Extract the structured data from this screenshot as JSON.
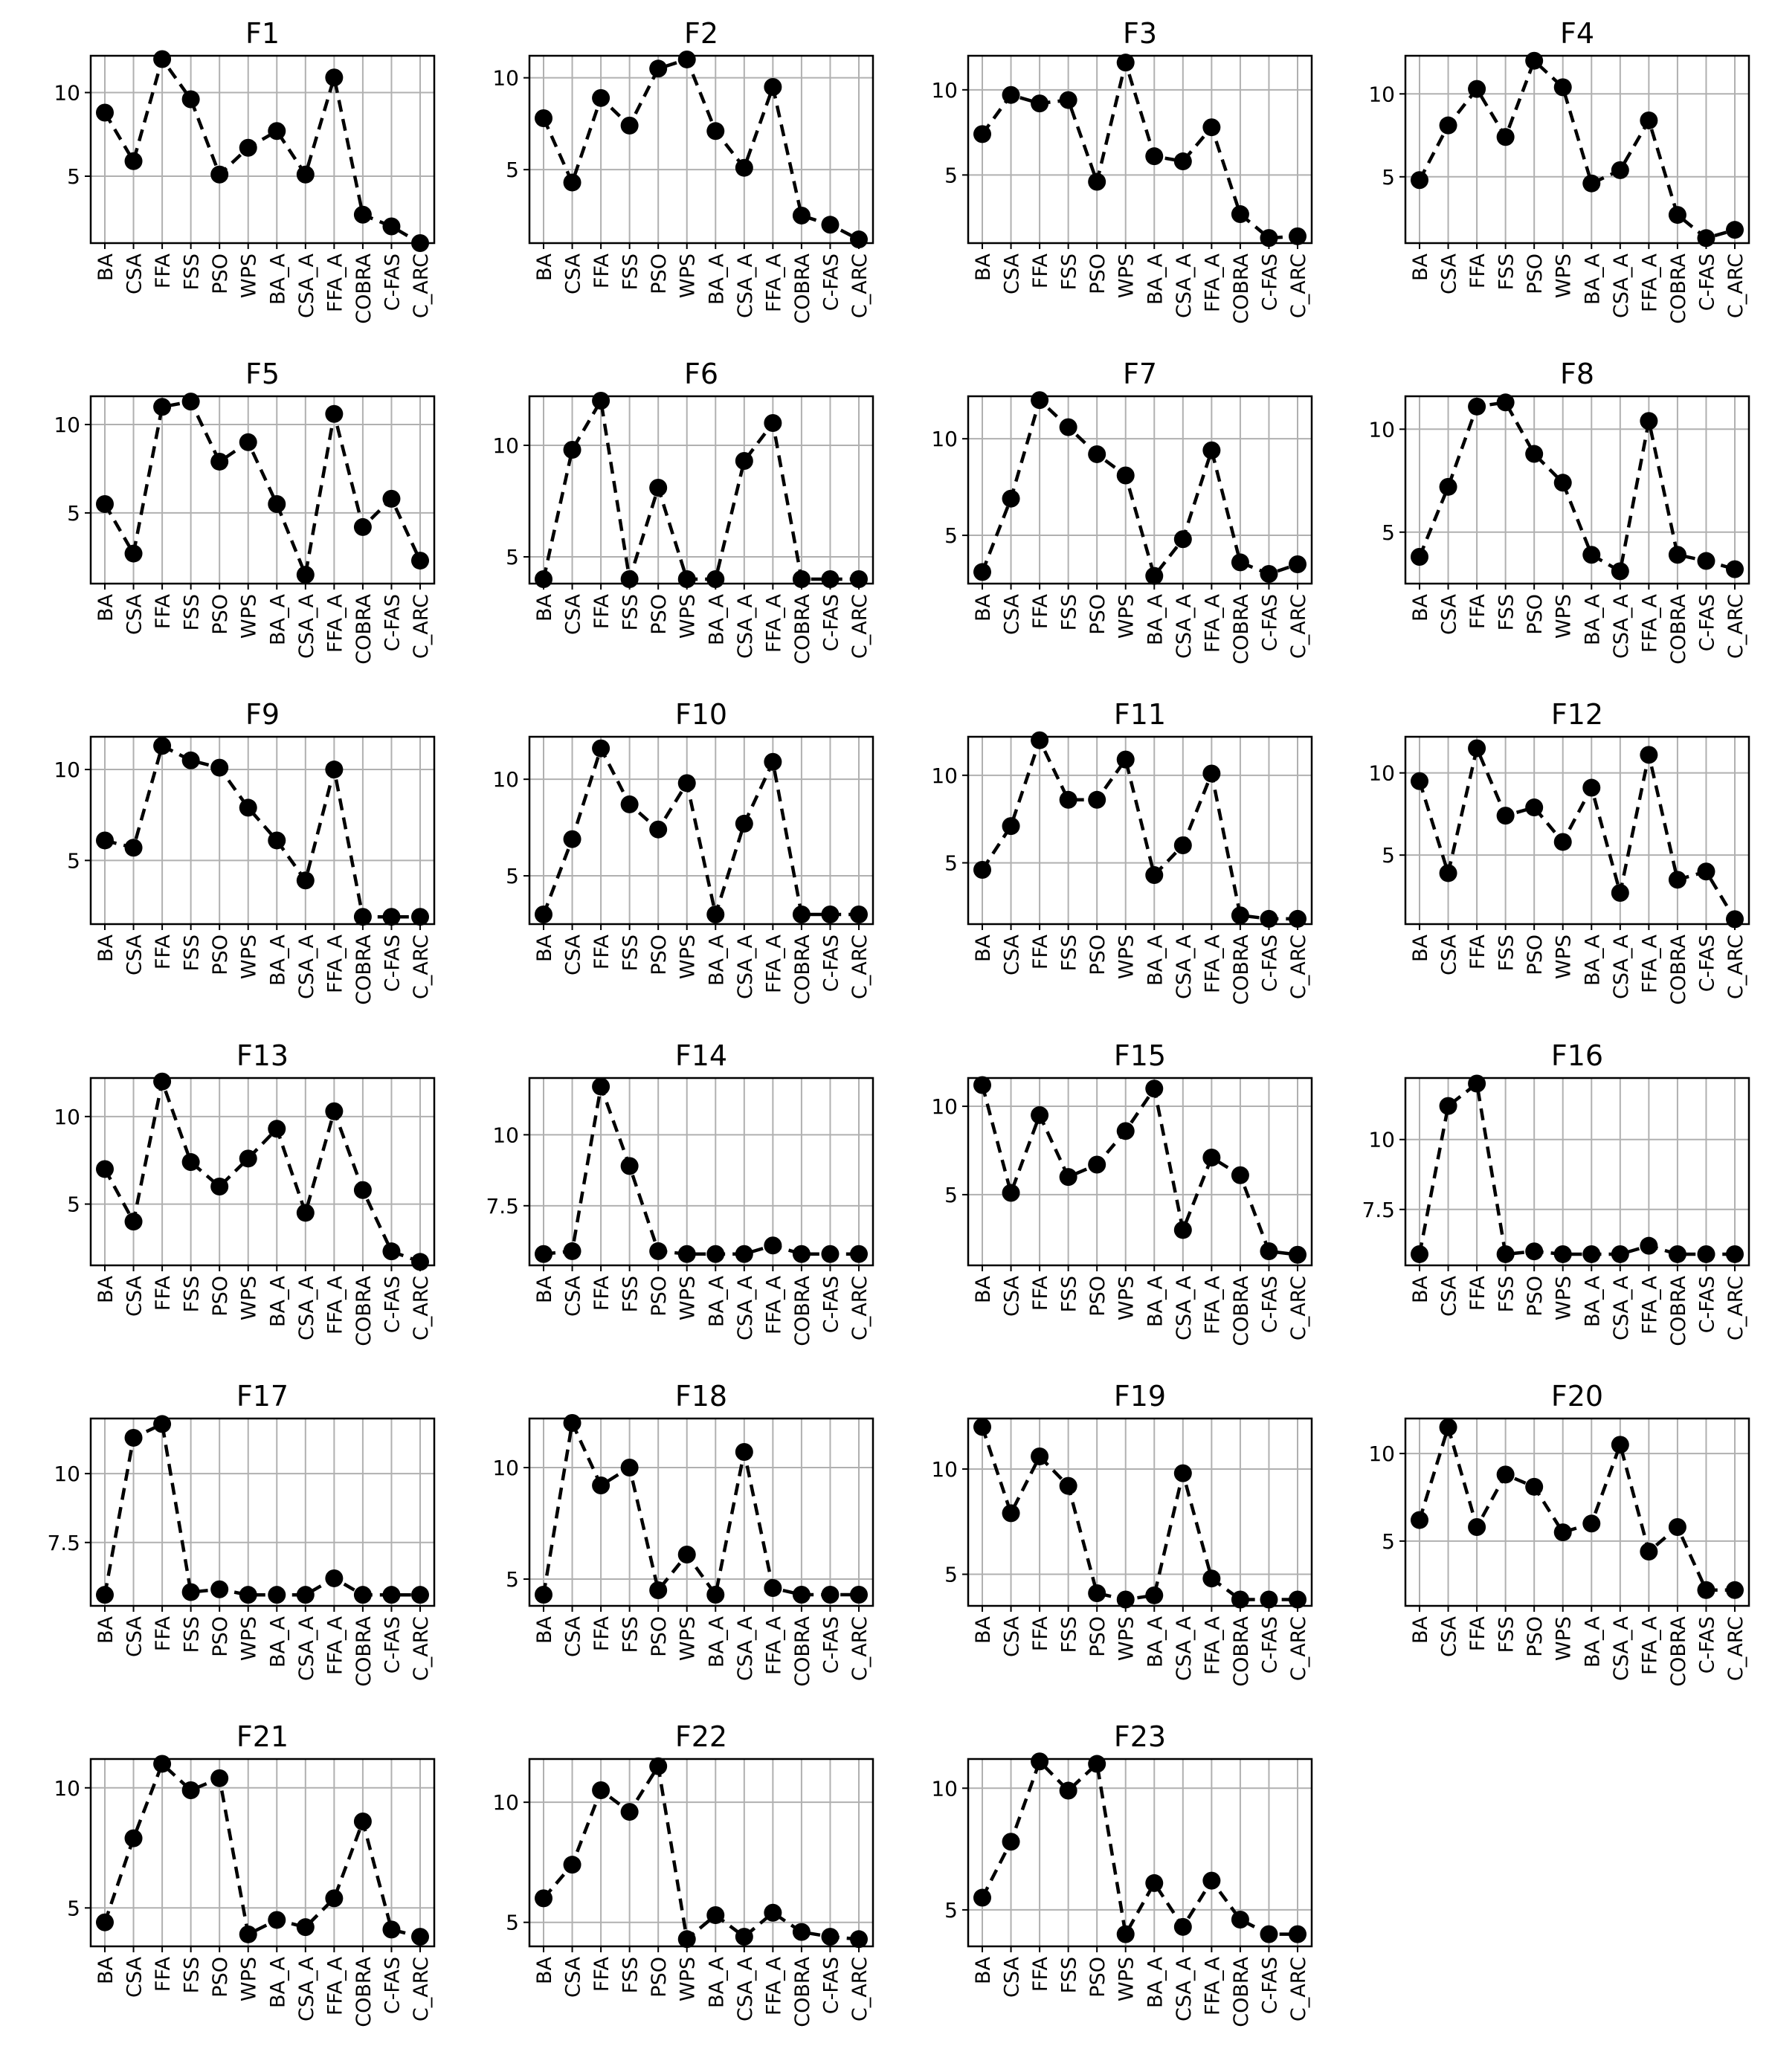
{
  "categories": [
    "BA",
    "CSA",
    "FFA",
    "FSS",
    "PSO",
    "WPS",
    "BA_A",
    "CSA_A",
    "FFA_A",
    "COBRA",
    "C-FAS",
    "C_ARC"
  ],
  "chart_data": [
    {
      "type": "line",
      "title": "F1",
      "ylim": [
        1,
        12.2
      ],
      "yticks": [
        5,
        10
      ],
      "values": [
        8.8,
        5.9,
        12.0,
        9.6,
        5.1,
        6.7,
        7.7,
        5.1,
        10.9,
        2.7,
        2.0,
        1.0
      ]
    },
    {
      "type": "line",
      "title": "F2",
      "ylim": [
        1,
        11.2
      ],
      "yticks": [
        5,
        10
      ],
      "values": [
        7.8,
        4.3,
        8.9,
        7.4,
        10.5,
        11.0,
        7.1,
        5.1,
        9.5,
        2.5,
        2.0,
        1.2
      ]
    },
    {
      "type": "line",
      "title": "F3",
      "ylim": [
        1,
        12.0
      ],
      "yticks": [
        5,
        10
      ],
      "values": [
        7.4,
        9.7,
        9.2,
        9.4,
        4.6,
        11.6,
        6.1,
        5.8,
        7.8,
        2.7,
        1.3,
        1.4
      ]
    },
    {
      "type": "line",
      "title": "F4",
      "ylim": [
        1,
        12.3
      ],
      "yticks": [
        5,
        10
      ],
      "values": [
        4.8,
        8.1,
        10.3,
        7.4,
        12.0,
        10.4,
        4.6,
        5.4,
        8.4,
        2.7,
        1.3,
        1.8
      ]
    },
    {
      "type": "line",
      "title": "F5",
      "ylim": [
        1,
        11.6
      ],
      "yticks": [
        5,
        10
      ],
      "values": [
        5.5,
        2.7,
        11.0,
        11.3,
        7.9,
        9.0,
        5.5,
        1.5,
        10.6,
        4.2,
        5.8,
        2.3
      ]
    },
    {
      "type": "line",
      "title": "F6",
      "ylim": [
        3.8,
        12.2
      ],
      "yticks": [
        5,
        10
      ],
      "values": [
        4.0,
        9.8,
        12.0,
        4.0,
        8.1,
        4.0,
        4.0,
        9.3,
        11.0,
        4.0,
        4.0,
        4.0
      ]
    },
    {
      "type": "line",
      "title": "F7",
      "ylim": [
        2.5,
        12.2
      ],
      "yticks": [
        5,
        10
      ],
      "values": [
        3.1,
        6.9,
        12.0,
        10.6,
        9.2,
        8.1,
        2.9,
        4.8,
        9.4,
        3.6,
        3.0,
        3.5
      ]
    },
    {
      "type": "line",
      "title": "F8",
      "ylim": [
        2.5,
        11.6
      ],
      "yticks": [
        5,
        10
      ],
      "values": [
        3.8,
        7.2,
        11.1,
        11.3,
        8.8,
        7.4,
        3.9,
        3.1,
        10.4,
        3.9,
        3.6,
        3.2
      ]
    },
    {
      "type": "line",
      "title": "F9",
      "ylim": [
        1.5,
        11.8
      ],
      "yticks": [
        5,
        10
      ],
      "values": [
        6.1,
        5.7,
        11.3,
        10.5,
        10.1,
        7.9,
        6.1,
        3.9,
        10.0,
        1.9,
        1.9,
        1.9
      ]
    },
    {
      "type": "line",
      "title": "F10",
      "ylim": [
        2.5,
        12.2
      ],
      "yticks": [
        5,
        10
      ],
      "values": [
        3.0,
        6.9,
        11.6,
        8.7,
        7.4,
        9.8,
        3.0,
        7.7,
        10.9,
        3.0,
        3.0,
        3.0
      ]
    },
    {
      "type": "line",
      "title": "F11",
      "ylim": [
        1.5,
        12.2
      ],
      "yticks": [
        5,
        10
      ],
      "values": [
        4.6,
        7.1,
        12.0,
        8.6,
        8.6,
        10.9,
        4.3,
        6.0,
        10.1,
        2.0,
        1.8,
        1.8
      ]
    },
    {
      "type": "line",
      "title": "F12",
      "ylim": [
        0.8,
        12.2
      ],
      "yticks": [
        5,
        10
      ],
      "values": [
        9.5,
        3.9,
        11.5,
        7.4,
        7.9,
        5.8,
        9.1,
        2.7,
        11.1,
        3.5,
        4.0,
        1.1
      ]
    },
    {
      "type": "line",
      "title": "F13",
      "ylim": [
        1.5,
        12.2
      ],
      "yticks": [
        5,
        10
      ],
      "values": [
        7.0,
        4.0,
        12.0,
        7.4,
        6.0,
        7.6,
        9.3,
        4.5,
        10.3,
        5.8,
        2.3,
        1.7
      ]
    },
    {
      "type": "line",
      "title": "F14",
      "ylim": [
        5.4,
        12.0
      ],
      "yticks": [
        7.5,
        10.0
      ],
      "values": [
        5.8,
        5.9,
        11.7,
        8.9,
        5.9,
        5.8,
        5.8,
        5.8,
        6.1,
        5.8,
        5.8,
        5.8
      ]
    },
    {
      "type": "line",
      "title": "F15",
      "ylim": [
        1.0,
        11.6
      ],
      "yticks": [
        5,
        10
      ],
      "values": [
        11.2,
        5.1,
        9.5,
        6.0,
        6.7,
        8.6,
        11.0,
        3.0,
        7.1,
        6.1,
        1.8,
        1.6
      ]
    },
    {
      "type": "line",
      "title": "F16",
      "ylim": [
        5.5,
        12.2
      ],
      "yticks": [
        7.5,
        10.0
      ],
      "values": [
        5.9,
        11.2,
        12.0,
        5.9,
        6.0,
        5.9,
        5.9,
        5.9,
        6.2,
        5.9,
        5.9,
        5.9
      ]
    },
    {
      "type": "line",
      "title": "F17",
      "ylim": [
        5.2,
        12.0
      ],
      "yticks": [
        7.5,
        10.0
      ],
      "values": [
        5.6,
        11.3,
        11.8,
        5.7,
        5.8,
        5.6,
        5.6,
        5.6,
        6.2,
        5.6,
        5.6,
        5.6
      ]
    },
    {
      "type": "line",
      "title": "F18",
      "ylim": [
        3.8,
        12.2
      ],
      "yticks": [
        5,
        10
      ],
      "values": [
        4.3,
        12.0,
        9.2,
        10.0,
        4.5,
        6.1,
        4.3,
        10.7,
        4.6,
        4.3,
        4.3,
        4.3
      ]
    },
    {
      "type": "line",
      "title": "F19",
      "ylim": [
        3.5,
        12.4
      ],
      "yticks": [
        5,
        10
      ],
      "values": [
        12.0,
        7.9,
        10.6,
        9.2,
        4.1,
        3.8,
        4.0,
        9.8,
        4.8,
        3.8,
        3.8,
        3.8
      ]
    },
    {
      "type": "line",
      "title": "F20",
      "ylim": [
        1.3,
        12.0
      ],
      "yticks": [
        5,
        10
      ],
      "values": [
        6.2,
        11.5,
        5.8,
        8.8,
        8.1,
        5.5,
        6.0,
        10.5,
        4.4,
        5.8,
        2.2,
        2.2
      ]
    },
    {
      "type": "line",
      "title": "F21",
      "ylim": [
        3.4,
        11.2
      ],
      "yticks": [
        5,
        10
      ],
      "values": [
        4.4,
        7.9,
        11.0,
        9.9,
        10.4,
        3.9,
        4.5,
        4.2,
        5.4,
        8.6,
        4.1,
        3.8
      ]
    },
    {
      "type": "line",
      "title": "F22",
      "ylim": [
        4.0,
        11.8
      ],
      "yticks": [
        5,
        10
      ],
      "values": [
        6.0,
        7.4,
        10.5,
        9.6,
        11.5,
        4.3,
        5.3,
        4.4,
        5.4,
        4.6,
        4.4,
        4.3
      ]
    },
    {
      "type": "line",
      "title": "F23",
      "ylim": [
        3.5,
        11.2
      ],
      "yticks": [
        5,
        10
      ],
      "values": [
        5.5,
        7.8,
        11.1,
        9.9,
        11.0,
        4.0,
        6.1,
        4.3,
        6.2,
        4.6,
        4.0,
        4.0
      ]
    }
  ]
}
